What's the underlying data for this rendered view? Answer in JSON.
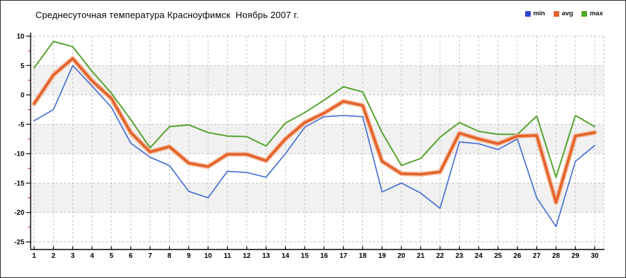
{
  "title": "Среднесуточная температура Красноуфимск  Ноябрь 2007 г.",
  "legend": [
    {
      "label": "min",
      "color": "#2b48d0"
    },
    {
      "label": "avg",
      "color": "#e2622a"
    },
    {
      "label": "max",
      "color": "#4fa526"
    }
  ],
  "colors": {
    "min_line": "#4a6fd4",
    "avg_line": "#e2622a",
    "avg_halo": "#f6b38f",
    "max_line": "#55a32c",
    "grid": "#c2c2c2",
    "band": "#f1f1f1",
    "axis": "#000000",
    "minor_tick": "#cc2200",
    "tick_label": "#000000"
  },
  "chart_data": {
    "type": "line",
    "title": "Среднесуточная температура Красноуфимск  Ноябрь 2007 г.",
    "xlabel": "",
    "ylabel": "",
    "ylim": [
      -25,
      10
    ],
    "y_ticks": [
      10,
      5,
      0,
      -5,
      -10,
      -15,
      -20,
      -25
    ],
    "y_minor_ticks": [
      7.5,
      2.5,
      -2.5,
      -7.5,
      -12.5,
      -17.5,
      -22.5
    ],
    "grid": true,
    "legend_position": "top-right",
    "gray_bands": [
      [
        5,
        0
      ],
      [
        -5,
        -10
      ],
      [
        -15,
        -20
      ]
    ],
    "categories": [
      "1",
      "2",
      "3",
      "4",
      "5",
      "6",
      "7",
      "8",
      "9",
      "10",
      "11",
      "12",
      "13",
      "14",
      "15",
      "16",
      "17",
      "18",
      "19",
      "20",
      "21",
      "22",
      "23",
      "24",
      "25",
      "26",
      "27",
      "28",
      "29",
      "30"
    ],
    "series": [
      {
        "name": "min",
        "color": "#4a6fd4",
        "values": [
          -4.4,
          -2.5,
          5.0,
          1.5,
          -2.1,
          -8.2,
          -10.6,
          -12.0,
          -16.4,
          -17.5,
          -13.0,
          -13.2,
          -14.0,
          -10.0,
          -5.5,
          -3.7,
          -3.5,
          -3.7,
          -16.5,
          -15.0,
          -16.7,
          -19.3,
          -8.0,
          -8.3,
          -9.3,
          -7.5,
          -17.5,
          -22.4,
          -11.3,
          -8.6
        ]
      },
      {
        "name": "avg",
        "color": "#e2622a",
        "values": [
          -1.5,
          3.4,
          6.2,
          2.4,
          -0.6,
          -6.4,
          -9.7,
          -8.8,
          -11.6,
          -12.2,
          -10.1,
          -10.1,
          -11.2,
          -7.5,
          -4.7,
          -3.1,
          -1.1,
          -1.8,
          -11.3,
          -13.4,
          -13.5,
          -13.1,
          -6.5,
          -7.5,
          -8.3,
          -7.0,
          -6.9,
          -18.3,
          -7.0,
          -6.4
        ]
      },
      {
        "name": "max",
        "color": "#55a32c",
        "values": [
          4.6,
          9.1,
          8.2,
          4.0,
          0.3,
          -4.2,
          -9.0,
          -5.4,
          -5.1,
          -6.4,
          -7.0,
          -7.1,
          -8.7,
          -4.8,
          -3.0,
          -0.9,
          1.4,
          0.5,
          -6.4,
          -12.0,
          -10.8,
          -7.2,
          -4.7,
          -6.2,
          -6.7,
          -6.7,
          -3.6,
          -14.0,
          -3.5,
          -5.4
        ]
      }
    ]
  }
}
